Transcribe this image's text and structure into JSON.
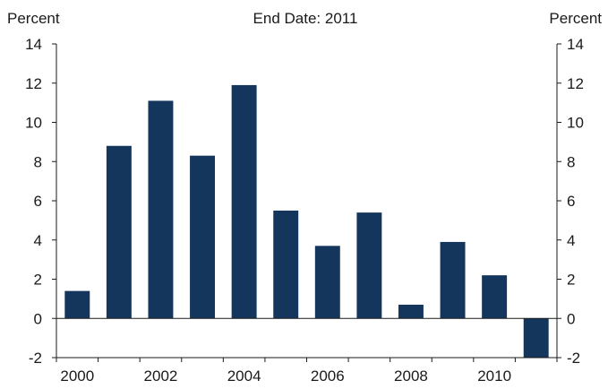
{
  "chart_data": {
    "type": "bar",
    "title": "End Date: 2011",
    "ylabel_left": "Percent",
    "ylabel_right": "Percent",
    "x_tick_labels": [
      "2000",
      "2002",
      "2004",
      "2006",
      "2008",
      "2010"
    ],
    "y_tick_labels": [
      "14",
      "12",
      "10",
      "8",
      "6",
      "4",
      "2",
      "0",
      "-2"
    ],
    "categories": [
      "2000",
      "2001",
      "2002",
      "2003",
      "2004",
      "2005",
      "2006",
      "2007",
      "2008",
      "2009",
      "2010",
      "2011"
    ],
    "values": [
      1.4,
      8.8,
      11.1,
      8.3,
      11.9,
      5.5,
      3.7,
      5.4,
      0.7,
      3.9,
      2.2,
      -2.0
    ],
    "ylim": [
      -2,
      14
    ],
    "grid": false,
    "colors": {
      "bar": "#14365d",
      "axis": "#1a1a1a"
    }
  }
}
